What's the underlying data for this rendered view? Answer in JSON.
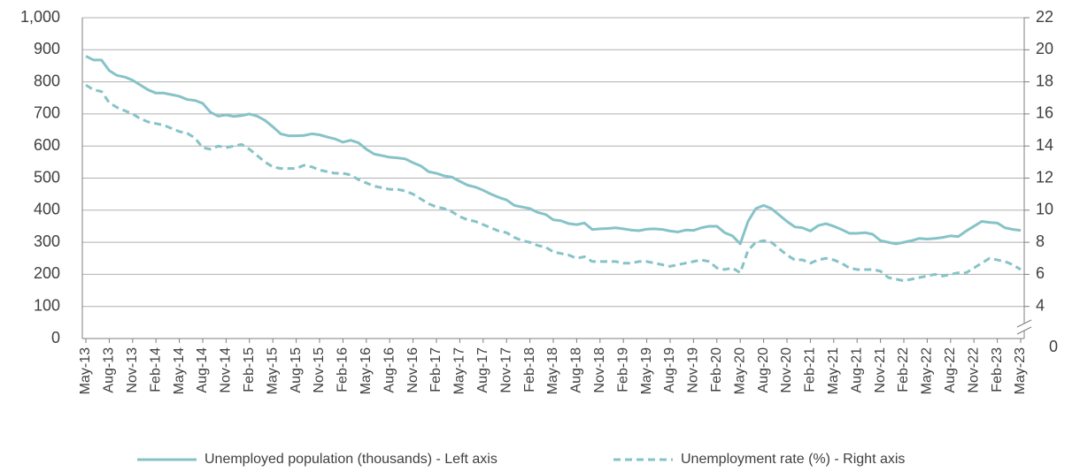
{
  "chart_data": {
    "type": "line",
    "categories": [
      "May-13",
      null,
      null,
      "Aug-13",
      null,
      null,
      "Nov-13",
      null,
      null,
      "Feb-14",
      null,
      null,
      "May-14",
      null,
      null,
      "Aug-14",
      null,
      null,
      "Nov-14",
      null,
      null,
      "Feb-15",
      null,
      null,
      "May-15",
      null,
      null,
      "Aug-15",
      null,
      null,
      "Nov-15",
      null,
      null,
      "Feb-16",
      null,
      null,
      "May-16",
      null,
      null,
      "Aug-16",
      null,
      null,
      "Nov-16",
      null,
      null,
      "Feb-17",
      null,
      null,
      "May-17",
      null,
      null,
      "Aug-17",
      null,
      null,
      "Nov-17",
      null,
      null,
      "Feb-18",
      null,
      null,
      "May-18",
      null,
      null,
      "Aug-18",
      null,
      null,
      "Nov-18",
      null,
      null,
      "Feb-19",
      null,
      null,
      "May-19",
      null,
      null,
      "Aug-19",
      null,
      null,
      "Nov-19",
      null,
      null,
      "Feb-20",
      null,
      null,
      "May-20",
      null,
      null,
      "Aug-20",
      null,
      null,
      "Nov-20",
      null,
      null,
      "Feb-21",
      null,
      null,
      "May-21",
      null,
      null,
      "Aug-21",
      null,
      null,
      "Nov-21",
      null,
      null,
      "Feb-22",
      null,
      null,
      "May-22",
      null,
      null,
      "Aug-22",
      null,
      null,
      "Nov-22",
      null,
      null,
      "Feb-23",
      null,
      null,
      "May-23"
    ],
    "series": [
      {
        "name": "Unemployed population (thousands) - Left axis",
        "color": "#86c3c8",
        "dash": false,
        "axis": "y",
        "values": [
          880,
          868,
          868,
          835,
          820,
          815,
          805,
          790,
          775,
          765,
          765,
          760,
          755,
          745,
          742,
          733,
          705,
          693,
          697,
          692,
          695,
          700,
          693,
          680,
          660,
          638,
          632,
          632,
          633,
          638,
          635,
          628,
          622,
          612,
          618,
          610,
          590,
          575,
          570,
          565,
          563,
          560,
          548,
          538,
          520,
          515,
          507,
          503,
          490,
          478,
          472,
          462,
          450,
          440,
          432,
          415,
          410,
          405,
          393,
          387,
          370,
          367,
          358,
          355,
          360,
          340,
          342,
          343,
          345,
          342,
          338,
          336,
          341,
          342,
          340,
          335,
          332,
          338,
          337,
          345,
          350,
          350,
          330,
          320,
          295,
          365,
          405,
          415,
          405,
          385,
          365,
          348,
          345,
          335,
          352,
          358,
          350,
          340,
          328,
          328,
          330,
          325,
          305,
          300,
          295,
          300,
          305,
          312,
          310,
          312,
          315,
          320,
          318,
          335,
          350,
          365,
          362,
          360,
          345,
          340,
          337
        ]
      },
      {
        "name": "Unemployment rate (%) - Right axis",
        "color": "#86c3c8",
        "dash": true,
        "axis": "y2",
        "values": [
          17.8,
          17.5,
          17.4,
          16.7,
          16.4,
          16.2,
          16.0,
          15.7,
          15.5,
          15.4,
          15.3,
          15.1,
          14.9,
          14.8,
          14.5,
          13.9,
          13.8,
          14.0,
          13.9,
          14.0,
          14.1,
          13.8,
          13.4,
          13.0,
          12.7,
          12.6,
          12.6,
          12.6,
          12.8,
          12.7,
          12.5,
          12.4,
          12.3,
          12.3,
          12.2,
          11.9,
          11.7,
          11.5,
          11.4,
          11.3,
          11.3,
          11.2,
          11.0,
          10.7,
          10.4,
          10.2,
          10.1,
          9.9,
          9.6,
          9.4,
          9.3,
          9.1,
          8.9,
          8.7,
          8.6,
          8.3,
          8.1,
          8.0,
          7.8,
          7.7,
          7.4,
          7.3,
          7.2,
          7.0,
          7.1,
          6.8,
          6.8,
          6.8,
          6.8,
          6.7,
          6.7,
          6.8,
          6.8,
          6.7,
          6.6,
          6.5,
          6.6,
          6.7,
          6.8,
          6.9,
          6.8,
          6.4,
          6.3,
          6.4,
          6.1,
          7.5,
          8.0,
          8.1,
          8.0,
          7.6,
          7.2,
          6.9,
          6.9,
          6.7,
          6.9,
          7.0,
          6.9,
          6.7,
          6.4,
          6.3,
          6.3,
          6.3,
          6.2,
          5.8,
          5.7,
          5.6,
          5.7,
          5.8,
          5.9,
          6.0,
          5.9,
          6.0,
          6.1,
          6.1,
          6.4,
          6.7,
          7.0,
          6.9,
          6.8,
          6.6,
          6.3
        ]
      }
    ],
    "ylim": [
      0,
      1000
    ],
    "yticks": [
      0,
      100,
      200,
      300,
      400,
      500,
      600,
      700,
      800,
      900,
      {
        "value": 1000,
        "label": "1,000"
      }
    ],
    "y2lim": [
      2,
      22
    ],
    "y2ticks": [
      4,
      6,
      8,
      10,
      12,
      14,
      16,
      18,
      20,
      22
    ],
    "y2_break_label": "0",
    "grid": true,
    "legend": "bottom"
  }
}
